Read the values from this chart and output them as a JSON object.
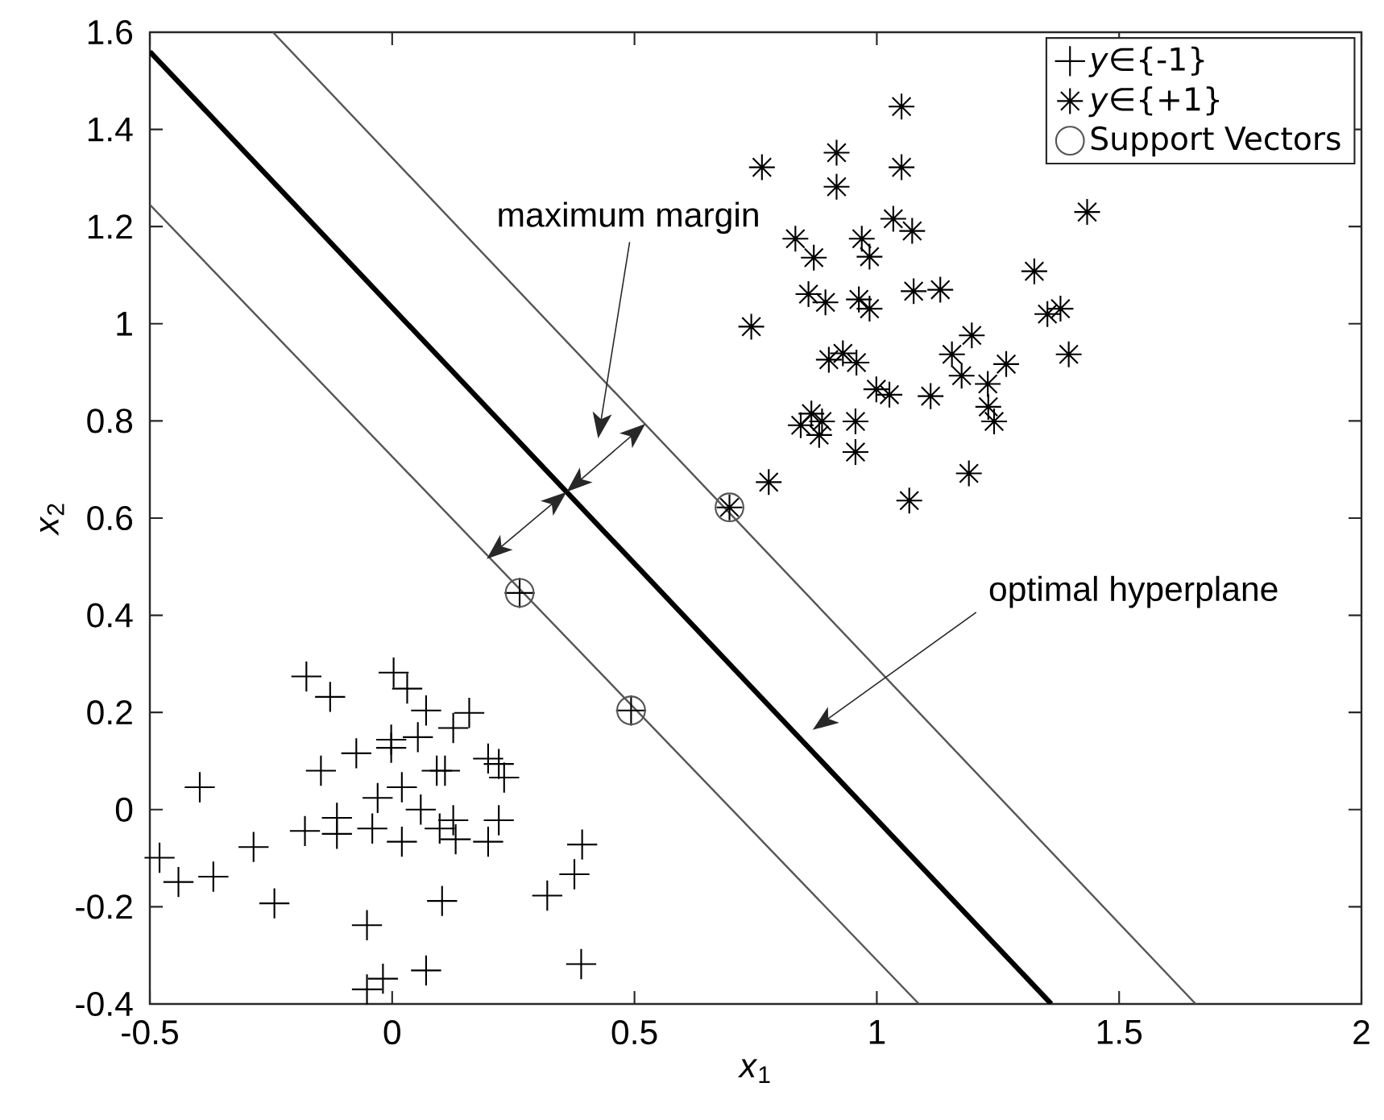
{
  "chart_data": {
    "type": "scatter",
    "xlabel": "*x*$_{1}$",
    "ylabel": "*x*$_{2}$",
    "xlim": [
      -0.5,
      2
    ],
    "ylim": [
      -0.4,
      1.6
    ],
    "xticks": [
      -0.5,
      0,
      0.5,
      1,
      1.5,
      2
    ],
    "yticks": [
      -0.4,
      -0.2,
      0,
      0.2,
      0.4,
      0.6,
      0.8,
      1,
      1.2,
      1.4,
      1.6
    ],
    "legend": "top right",
    "series": [
      {
        "type": "line",
        "color": "#000000",
        "marker": "none",
        "x": [
          -0.5,
          1.36
        ],
        "values": [
          1.56,
          -0.4
        ]
      },
      {
        "type": "line",
        "color": "#555555",
        "marker": "none",
        "x": [
          -0.246,
          1.658
        ],
        "values": [
          1.6,
          -0.4
        ]
      },
      {
        "type": "line",
        "color": "#555555",
        "marker": "none",
        "x": [
          -0.5,
          1.087
        ],
        "values": [
          1.245,
          -0.4
        ]
      },
      {
        "name": "*y*∈{-1}",
        "color": "#000000",
        "marker": "cross",
        "x": [
          -0.177,
          -0.128,
          0.003,
          0.031,
          0.07,
          0.159,
          0.126,
          -0.002,
          0.053,
          -0.074,
          -0.002,
          -0.147,
          0.092,
          0.109,
          0.198,
          0.22,
          0.231,
          -0.397,
          0.02,
          -0.03,
          0.059,
          -0.114,
          0.22,
          0.126,
          -0.18,
          -0.041,
          0.098,
          -0.114,
          0.131,
          0.02,
          0.198,
          -0.286,
          0.392,
          -0.48,
          -0.441,
          -0.369,
          0.376,
          0.32,
          -0.243,
          0.103,
          -0.052,
          0.39,
          0.07,
          -0.019,
          -0.052,
          0.263,
          0.493
        ],
        "values": [
          0.274,
          0.232,
          0.282,
          0.249,
          0.204,
          0.199,
          0.168,
          0.144,
          0.149,
          0.116,
          0.127,
          0.08,
          0.08,
          0.08,
          0.105,
          0.094,
          0.066,
          0.046,
          0.046,
          0.024,
          0.0,
          -0.017,
          -0.022,
          -0.022,
          -0.044,
          -0.039,
          -0.039,
          -0.05,
          -0.061,
          -0.066,
          -0.066,
          -0.077,
          -0.072,
          -0.099,
          -0.149,
          -0.138,
          -0.133,
          -0.177,
          -0.193,
          -0.188,
          -0.238,
          -0.318,
          -0.331,
          -0.348,
          -0.37,
          0.446,
          0.204
        ]
      },
      {
        "name": "*y*∈{+1}",
        "color": "#000000",
        "x": [
          1.051,
          0.763,
          0.917,
          0.917,
          1.051,
          1.434,
          1.034,
          1.073,
          0.832,
          0.969,
          0.87,
          0.985,
          1.325,
          0.859,
          0.894,
          0.963,
          0.985,
          1.076,
          1.131,
          1.352,
          1.379,
          0.741,
          1.396,
          1.196,
          1.155,
          1.267,
          0.901,
          0.93,
          0.958,
          1.175,
          1.229,
          0.999,
          1.026,
          1.111,
          1.23,
          1.242,
          0.865,
          0.887,
          0.843,
          0.881,
          0.956,
          0.956,
          0.777,
          1.19,
          1.067,
          0.696
        ],
        "values": [
          1.447,
          1.322,
          1.352,
          1.282,
          1.322,
          1.23,
          1.216,
          1.191,
          1.175,
          1.175,
          1.136,
          1.138,
          1.108,
          1.061,
          1.044,
          1.05,
          1.031,
          1.067,
          1.07,
          1.02,
          1.031,
          0.994,
          0.937,
          0.976,
          0.937,
          0.917,
          0.926,
          0.939,
          0.92,
          0.893,
          0.876,
          0.865,
          0.854,
          0.851,
          0.829,
          0.799,
          0.815,
          0.799,
          0.791,
          0.771,
          0.799,
          0.736,
          0.674,
          0.692,
          0.636,
          0.622
        ]
      },
      {
        "name": "Support Vectors",
        "color": "#555555",
        "marker": "circle",
        "x": [
          0.263,
          0.493,
          0.696
        ],
        "values": [
          0.446,
          0.204,
          0.622
        ]
      }
    ],
    "annotations": [
      "maximum margin",
      "optimal hyperplane"
    ]
  }
}
